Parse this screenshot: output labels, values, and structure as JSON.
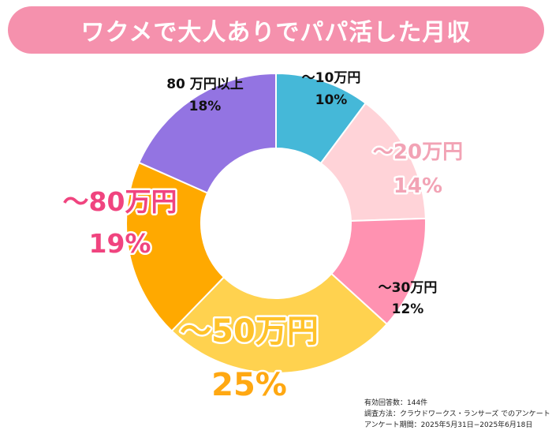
{
  "title": "ワクメで大人ありでパパ活した月収",
  "chart_data": {
    "type": "pie",
    "donut": true,
    "start": "top",
    "direction": "clockwise",
    "slices": [
      {
        "category": "〜10万円",
        "percent": "10%",
        "value": 10,
        "color": "#45b8d8",
        "label_color": "#111111"
      },
      {
        "category": "〜20万円",
        "percent": "14%",
        "value": 14,
        "color": "#ffd3d8",
        "label_color": "#f2a3b5"
      },
      {
        "category": "〜30万円",
        "percent": "12%",
        "value": 12,
        "color": "#ff92b1",
        "label_color": "#111111"
      },
      {
        "category": "〜50万円",
        "percent": "25%",
        "value": 25,
        "color": "#ffd24f",
        "label_color": "#ffc22a",
        "label_color_pct": "#ffa812"
      },
      {
        "category": "〜80万円",
        "percent": "19%",
        "value": 19,
        "color": "#ffa900",
        "label_color": "#f0447f"
      },
      {
        "category": "80 万円以上",
        "percent": "18%",
        "value": 18,
        "color": "#9374e2",
        "label_color": "#111111"
      }
    ]
  },
  "footnote": {
    "responses": "有効回答数：144件",
    "method": "調査方法：クラウドワークス・ランサーズ でのアンケート",
    "period": "アンケート期間：2025年5月31日−2025年6月18日"
  },
  "colors": {
    "banner": "#f591ad",
    "title_text": "#ffffff",
    "background": "#ffffff"
  }
}
